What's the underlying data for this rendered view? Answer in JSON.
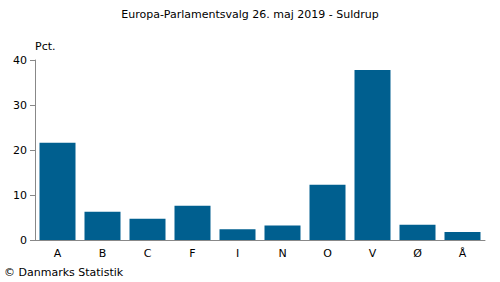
{
  "chart_data": {
    "type": "bar",
    "title": "Europa-Parlamentsvalg 26. maj 2019 - Suldrup",
    "ylabel": "Pct.",
    "categories": [
      "A",
      "B",
      "C",
      "F",
      "I",
      "N",
      "O",
      "V",
      "Ø",
      "Å"
    ],
    "values": [
      21.6,
      6.3,
      4.7,
      7.6,
      2.4,
      3.2,
      12.3,
      37.8,
      3.4,
      1.8
    ],
    "color": "#005f8f",
    "ylim": [
      0,
      40
    ],
    "yticks": [
      0,
      10,
      20,
      30,
      40
    ],
    "grid": false,
    "annotations": [
      "© Danmarks Statistik"
    ]
  }
}
